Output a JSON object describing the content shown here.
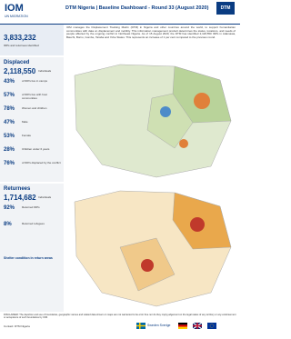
{
  "header": {
    "logo": "IOM",
    "logo_sub": "UN MIGRATION",
    "title": "DTM Nigeria | Baseline Dashboard - Round 33 (August 2020)",
    "badge": "DTM"
  },
  "intro": {
    "total": "3,833,232",
    "total_label": "IDPs and returnees identified",
    "text": "IOM manages the Displacement Tracking Matrix (DTM) in Nigeria and other countries around the world, to support humanitarian communities with data on displacement and mobility. This information management product determines the status, locations, and needs of people affected by the ongoing conflict in Northeast Nigeria. As of 15 August 2020, the DTM has identified 2,118,550 IDPs in Adamawa, Bauchi, Borno, Gombe, Taraba and Yobe States. This represents an increase of 1 per cent compared to the previous round."
  },
  "displaced": {
    "title": "Displaced",
    "total": "2,118,550",
    "total_label": "Individuals",
    "stats": [
      {
        "value": "43%",
        "label": "of IDPs live in camps"
      },
      {
        "value": "57%",
        "label": "of IDPs live with host communities"
      },
      {
        "value": "78%",
        "label": "Women and children"
      },
      {
        "value": "47%",
        "label": "Male"
      },
      {
        "value": "53%",
        "label": "Female"
      },
      {
        "value": "28%",
        "label": "Children under 6 years"
      },
      {
        "value": "76%",
        "label": "of IDPs displaced by the conflict"
      }
    ]
  },
  "returnees": {
    "title": "Returnees",
    "total": "1,714,682",
    "total_label": "Individuals",
    "stats": [
      {
        "value": "92%",
        "label": "Returned IDPs"
      },
      {
        "value": "8%",
        "label": "Returned refugees"
      }
    ],
    "chart_title": "Shelter condition in return areas"
  },
  "footer": {
    "disclaimer": "DISCLAIMER: The depiction and use of boundaries, geographic names and related data shown on maps are not warranted to be error free nor do they imply judgement on the legal status of any territory or any endorsement or acceptance of such boundaries by IOM.",
    "contact": "Contact: DTM Nigeria",
    "donor": "Sweden Sverige"
  }
}
